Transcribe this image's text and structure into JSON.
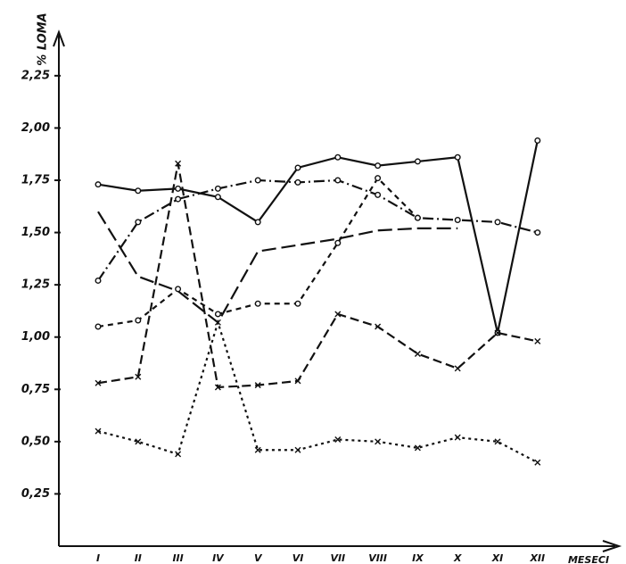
{
  "chart_data": {
    "type": "line",
    "y_label": "% LOMA",
    "x_label": "MESECI",
    "categories": [
      "I",
      "II",
      "III",
      "IV",
      "V",
      "VI",
      "VII",
      "VIII",
      "IX",
      "X",
      "XI",
      "XII"
    ],
    "ylim": [
      0,
      2.45
    ],
    "yticks": [
      {
        "value": 0.25,
        "label": "0,25"
      },
      {
        "value": 0.5,
        "label": "0,50"
      },
      {
        "value": 0.75,
        "label": "0,75"
      },
      {
        "value": 1.0,
        "label": "1,00"
      },
      {
        "value": 1.25,
        "label": "1,25"
      },
      {
        "value": 1.5,
        "label": "1,50"
      },
      {
        "value": 1.75,
        "label": "1,75"
      },
      {
        "value": 2.0,
        "label": "2,00"
      },
      {
        "value": 2.25,
        "label": "2,25"
      }
    ],
    "series": [
      {
        "color": "#111111",
        "dash": "solid",
        "marker": "circle",
        "values": [
          1.73,
          1.7,
          1.71,
          1.67,
          1.55,
          1.81,
          1.86,
          1.82,
          1.84,
          1.86,
          1.02,
          1.94
        ]
      },
      {
        "color": "#111111",
        "dash": "dashdot",
        "marker": "circle",
        "values": [
          1.27,
          1.55,
          1.66,
          1.71,
          1.75,
          1.74,
          1.75,
          1.68,
          1.57,
          1.56,
          1.55,
          1.5
        ]
      },
      {
        "color": "#111111",
        "dash": "longdash",
        "marker": "none",
        "values": [
          1.6,
          1.29,
          1.22,
          1.07,
          1.41,
          1.44,
          1.47,
          1.51,
          1.52,
          1.52,
          null,
          null
        ]
      },
      {
        "color": "#111111",
        "dash": "shortdash",
        "marker": "circle",
        "values": [
          1.05,
          1.08,
          1.23,
          1.11,
          1.16,
          1.16,
          1.45,
          1.76,
          1.57,
          null,
          null,
          null
        ]
      },
      {
        "color": "#111111",
        "dash": "dashx",
        "marker": "x",
        "values": [
          0.78,
          0.81,
          1.83,
          0.76,
          0.77,
          0.79,
          1.11,
          1.05,
          0.92,
          0.85,
          1.02,
          0.98
        ]
      },
      {
        "color": "#111111",
        "dash": "dotx",
        "marker": "x",
        "values": [
          0.55,
          0.5,
          0.44,
          1.07,
          0.46,
          0.46,
          0.51,
          0.5,
          0.47,
          0.52,
          0.5,
          0.4
        ]
      }
    ]
  }
}
